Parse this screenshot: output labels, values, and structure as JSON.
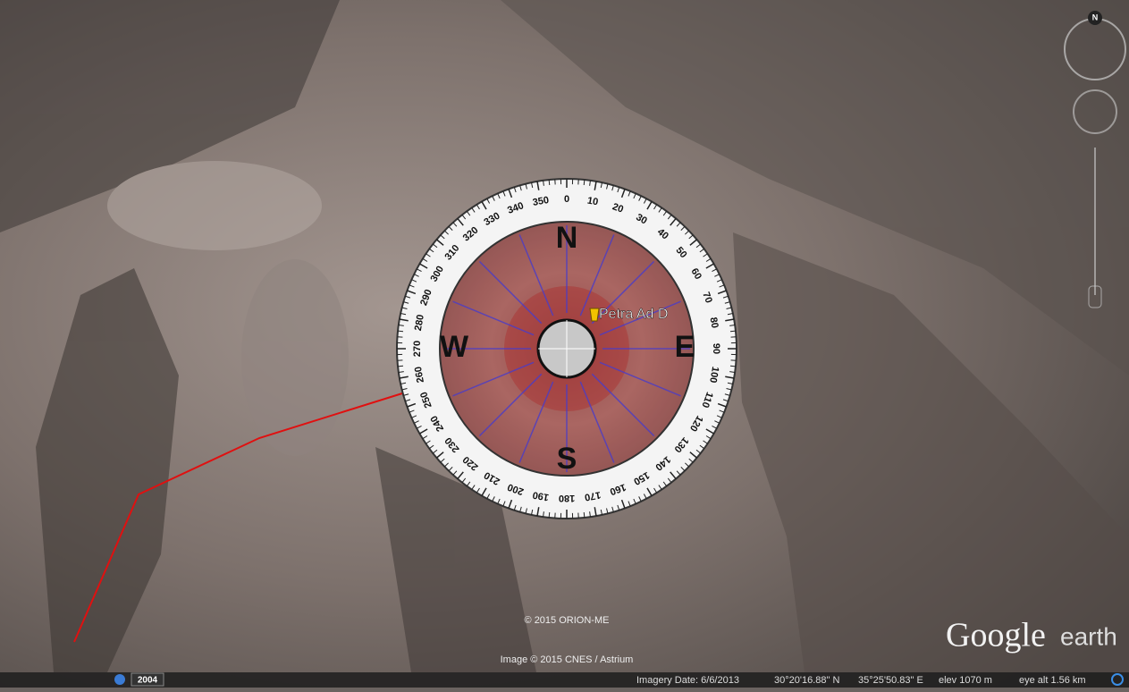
{
  "compass": {
    "degree_labels": [
      0,
      10,
      20,
      30,
      40,
      50,
      60,
      70,
      80,
      90,
      100,
      110,
      120,
      130,
      140,
      150,
      160,
      170,
      180,
      190,
      200,
      210,
      220,
      230,
      240,
      250,
      260,
      270,
      280,
      290,
      300,
      310,
      320,
      330,
      340,
      350
    ],
    "cardinals": {
      "north": "N",
      "east": "E",
      "south": "S",
      "west": "W"
    }
  },
  "placemark": {
    "label": "Petra Ad D"
  },
  "overlays": {
    "copyright_orion": "© 2015 ORION-ME",
    "copyright_image": "Image © 2015 CNES / Astrium",
    "logo_google": "Google",
    "logo_earth": "earth",
    "historical_year": "2004",
    "nav_north": "N"
  },
  "status_bar": {
    "imagery_date": "Imagery Date: 6/6/2013",
    "latitude": "30°20'16.88\" N",
    "longitude": "35°25'50.83\" E",
    "elevation": "elev  1070 m",
    "eye_altitude": "eye alt  1.56 km"
  }
}
